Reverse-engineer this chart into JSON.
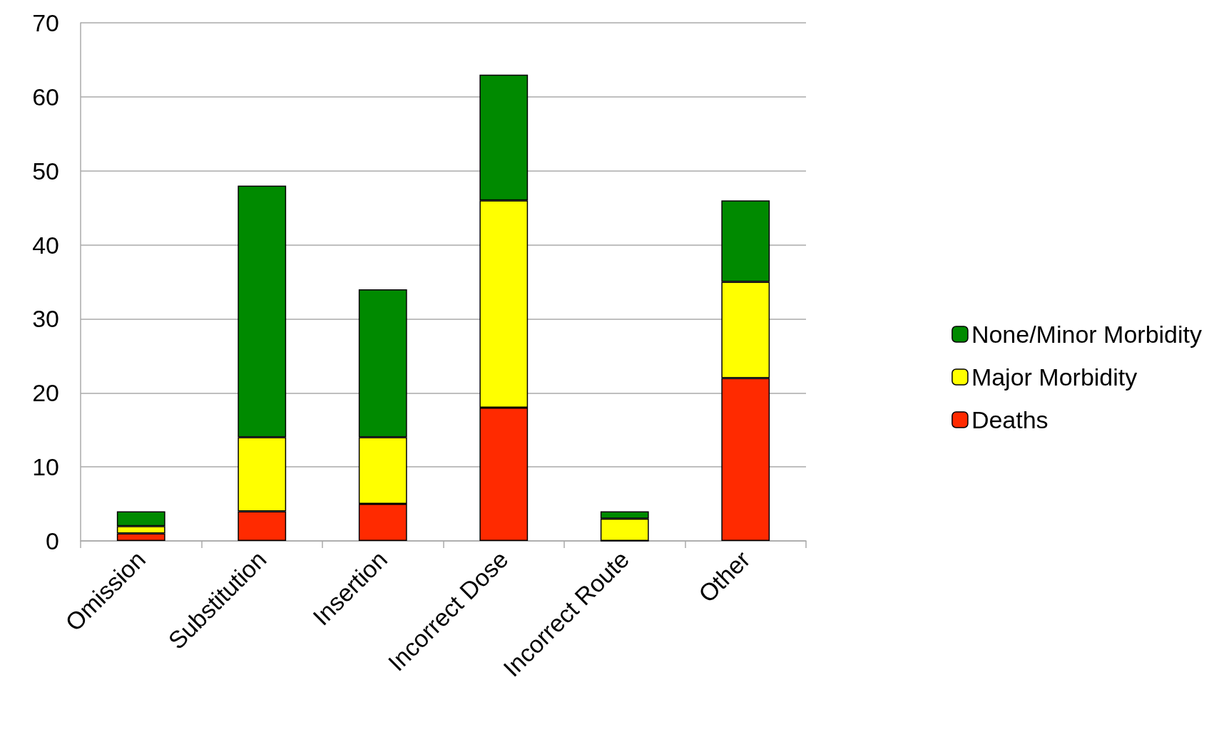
{
  "chart_data": {
    "type": "bar",
    "stacked": true,
    "categories": [
      "Omission",
      "Substitution",
      "Insertion",
      "Incorrect Dose",
      "Incorrect Route",
      "Other"
    ],
    "series": [
      {
        "name": "Deaths",
        "color": "#ff2a00",
        "values": [
          1,
          4,
          5,
          18,
          0,
          22
        ]
      },
      {
        "name": "Major Morbidity",
        "color": "#ffff00",
        "values": [
          1,
          10,
          9,
          28,
          3,
          13
        ]
      },
      {
        "name": "None/Minor Morbidity",
        "color": "#008a00",
        "values": [
          2,
          34,
          20,
          17,
          1,
          11
        ]
      }
    ],
    "ylim": [
      0,
      70
    ],
    "yticks": [
      0,
      10,
      20,
      30,
      40,
      50,
      60,
      70
    ],
    "grid": "y",
    "legend": "right"
  }
}
